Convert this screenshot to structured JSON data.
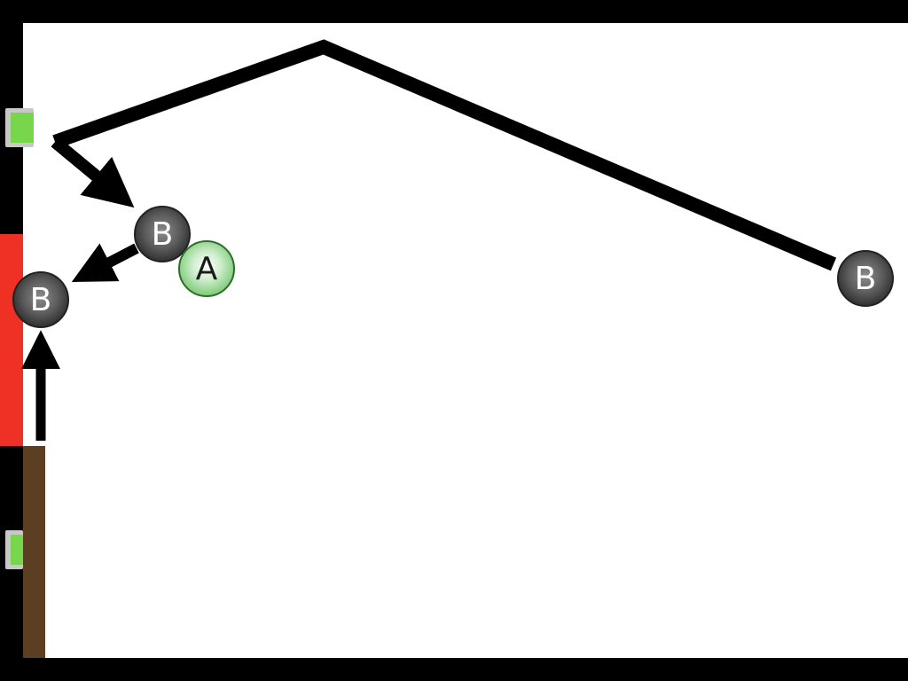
{
  "colors": {
    "frame": "#000000",
    "field": "#ffffff",
    "red_wall": "#ee3124",
    "brown_wall": "#5c3f22",
    "switch_led": "#77d64c",
    "arrow": "#000000"
  },
  "balls": [
    {
      "id": "b1",
      "label": "B",
      "type": "dark"
    },
    {
      "id": "a",
      "label": "A",
      "type": "green"
    },
    {
      "id": "b2",
      "label": "B",
      "type": "dark"
    },
    {
      "id": "b3",
      "label": "B",
      "type": "dark"
    }
  ],
  "switches": [
    {
      "id": "top",
      "state": "on"
    },
    {
      "id": "bottom",
      "state": "on"
    }
  ]
}
